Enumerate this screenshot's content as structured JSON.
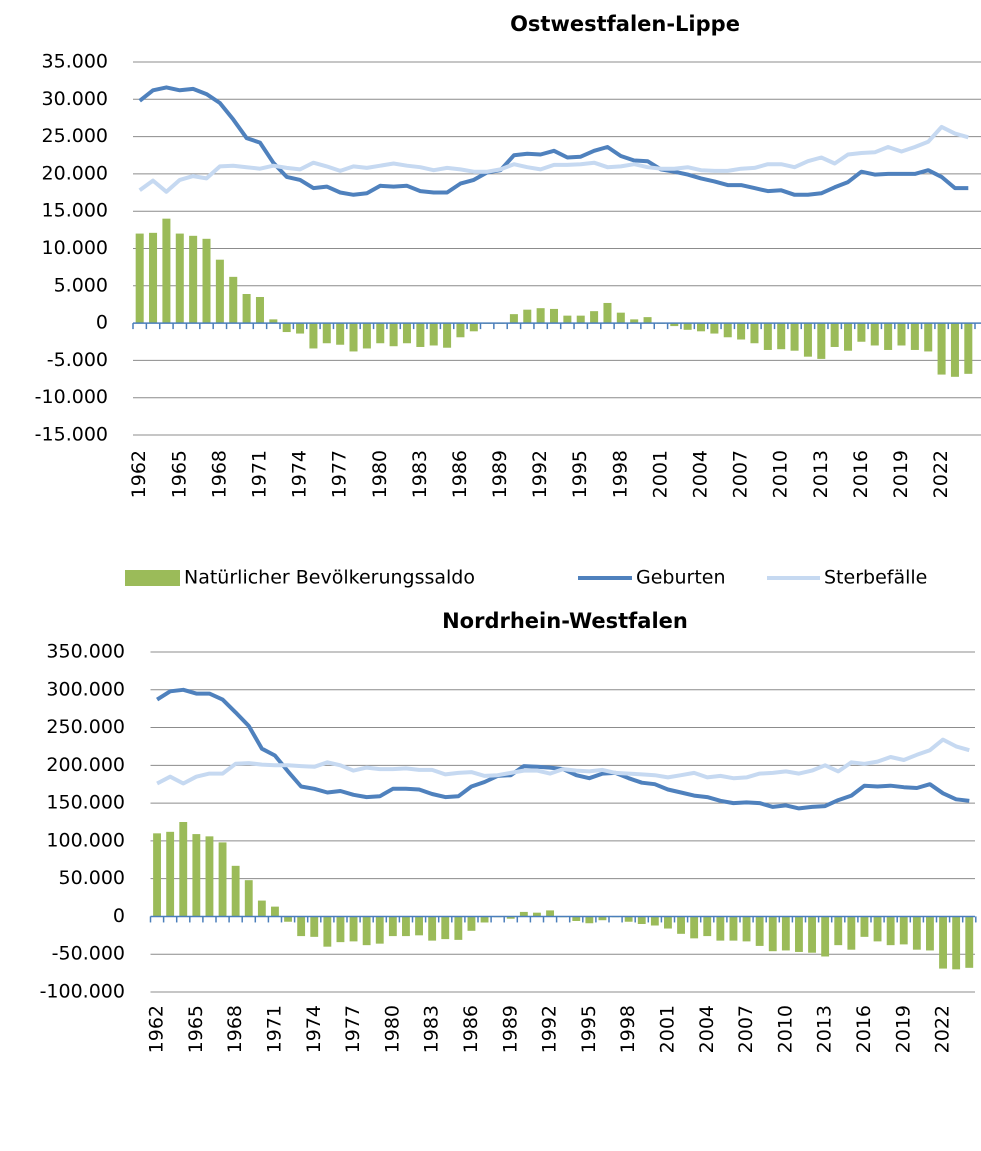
{
  "chart_data": [
    {
      "type": "bar",
      "title": "Ostwestfalen-Lippe",
      "legend": "bottom",
      "categories": [
        "1962",
        null,
        null,
        "1965",
        null,
        null,
        "1968",
        null,
        null,
        "1971",
        null,
        null,
        "1974",
        null,
        null,
        "1977",
        null,
        null,
        "1980",
        null,
        null,
        "1983",
        null,
        null,
        "1986",
        null,
        null,
        "1989",
        null,
        null,
        "1992",
        null,
        null,
        "1995",
        null,
        null,
        "1998",
        null,
        null,
        "2001",
        null,
        null,
        "2004",
        null,
        null,
        "2007",
        null,
        null,
        "2010",
        null,
        null,
        "2013",
        null,
        null,
        "2016",
        null,
        null,
        "2019",
        null,
        null,
        "2022",
        null,
        null
      ],
      "ylim": [
        -15000,
        35000
      ],
      "yticks": [
        {
          "value": -15000,
          "label": "-15.000"
        },
        {
          "value": -10000,
          "label": "-10.000"
        },
        {
          "value": -5000,
          "label": "-5.000"
        },
        0,
        {
          "value": 5000,
          "label": "5.000"
        },
        {
          "value": 10000,
          "label": "10.000"
        },
        {
          "value": 15000,
          "label": "15.000"
        },
        {
          "value": 20000,
          "label": "20.000"
        },
        {
          "value": 25000,
          "label": "25.000"
        },
        {
          "value": 30000,
          "label": "30.000"
        },
        {
          "value": 35000,
          "label": "35.000"
        }
      ],
      "grid": true,
      "series": [
        {
          "name": "Natürlicher Bevölkerungssaldo",
          "type": "bar",
          "color": "#9bbb59",
          "values": [
            12000,
            12100,
            14000,
            12000,
            11700,
            11300,
            8500,
            6200,
            3900,
            3500,
            500,
            -1200,
            -1400,
            -3400,
            -2700,
            -2900,
            -3800,
            -3400,
            -2700,
            -3100,
            -2700,
            -3200,
            -3000,
            -3300,
            -1900,
            -1100,
            -100,
            -100,
            1200,
            1800,
            2000,
            1900,
            1000,
            1000,
            1600,
            2700,
            1400,
            500,
            800,
            -100,
            -400,
            -900,
            -1100,
            -1400,
            -1900,
            -2200,
            -2700,
            -3600,
            -3500,
            -3700,
            -4500,
            -4800,
            -3200,
            -3700,
            -2500,
            -3000,
            -3600,
            -3000,
            -3600,
            -3800,
            -6900,
            -7200,
            -6800
          ]
        },
        {
          "name": "Geburten",
          "type": "line",
          "color": "#4f81bd",
          "values": [
            29800,
            31200,
            31600,
            31200,
            31400,
            30700,
            29500,
            27300,
            24800,
            24200,
            21500,
            19600,
            19200,
            18100,
            18300,
            17500,
            17200,
            17400,
            18400,
            18300,
            18400,
            17700,
            17500,
            17500,
            18700,
            19200,
            20200,
            20500,
            22500,
            22700,
            22600,
            23100,
            22200,
            22300,
            23100,
            23600,
            22400,
            21800,
            21700,
            20600,
            20300,
            19900,
            19400,
            19000,
            18500,
            18500,
            18100,
            17700,
            17800,
            17200,
            17200,
            17400,
            18200,
            18900,
            20300,
            19900,
            20000,
            20000,
            20000,
            20500,
            19600,
            18100,
            18100
          ]
        },
        {
          "name": "Sterbefälle",
          "type": "line",
          "color": "#c6d9f1",
          "values": [
            17800,
            19100,
            17600,
            19200,
            19700,
            19400,
            21000,
            21100,
            20900,
            20700,
            21100,
            20800,
            20600,
            21500,
            21000,
            20400,
            21000,
            20800,
            21100,
            21400,
            21100,
            20900,
            20500,
            20800,
            20600,
            20300,
            20300,
            20600,
            21300,
            20900,
            20600,
            21200,
            21200,
            21300,
            21500,
            20900,
            21000,
            21300,
            20900,
            20700,
            20700,
            20900,
            20500,
            20400,
            20400,
            20700,
            20800,
            21300,
            21300,
            20900,
            21700,
            22200,
            21400,
            22600,
            22800,
            22900,
            23600,
            23000,
            23600,
            24300,
            26300,
            25400,
            24900
          ]
        }
      ]
    },
    {
      "type": "bar",
      "title": "Nordrhein-Westfalen",
      "categories": [
        "1962",
        null,
        null,
        "1965",
        null,
        null,
        "1968",
        null,
        null,
        "1971",
        null,
        null,
        "1974",
        null,
        null,
        "1977",
        null,
        null,
        "1980",
        null,
        null,
        "1983",
        null,
        null,
        "1986",
        null,
        null,
        "1989",
        null,
        null,
        "1992",
        null,
        null,
        "1995",
        null,
        null,
        "1998",
        null,
        null,
        "2001",
        null,
        null,
        "2004",
        null,
        null,
        "2007",
        null,
        null,
        "2010",
        null,
        null,
        "2013",
        null,
        null,
        "2016",
        null,
        null,
        "2019",
        null,
        null,
        "2022",
        null,
        null
      ],
      "ylim": [
        -100000,
        350000
      ],
      "yticks": [
        {
          "value": -100000,
          "label": "-100.000"
        },
        {
          "value": -50000,
          "label": "-50.000"
        },
        0,
        {
          "value": 50000,
          "label": "50.000"
        },
        {
          "value": 100000,
          "label": "100.000"
        },
        {
          "value": 150000,
          "label": "150.000"
        },
        {
          "value": 200000,
          "label": "200.000"
        },
        {
          "value": 250000,
          "label": "250.000"
        },
        {
          "value": 300000,
          "label": "300.000"
        },
        {
          "value": 350000,
          "label": "350.000"
        }
      ],
      "grid": true,
      "series": [
        {
          "type": "bar",
          "color": "#9bbb59",
          "values": [
            110000,
            112000,
            125000,
            109000,
            106000,
            98000,
            67000,
            48000,
            21000,
            13000,
            -7000,
            -26000,
            -27000,
            -40000,
            -34000,
            -33000,
            -38000,
            -36000,
            -26000,
            -26000,
            -25000,
            -32000,
            -30000,
            -31000,
            -19000,
            -8000,
            -1000,
            -3000,
            6000,
            5000,
            8000,
            -1000,
            -6000,
            -9000,
            -5000,
            -1000,
            -7000,
            -10000,
            -12000,
            -16000,
            -23000,
            -29000,
            -26000,
            -32000,
            -32000,
            -33000,
            -39000,
            -46000,
            -45000,
            -47000,
            -48000,
            -53000,
            -38000,
            -44000,
            -27000,
            -33000,
            -38000,
            -37000,
            -44000,
            -45000,
            -69000,
            -70000,
            -68000
          ]
        },
        {
          "type": "line",
          "color": "#4f81bd",
          "values": [
            287000,
            298000,
            300000,
            295000,
            295000,
            287000,
            270000,
            252000,
            222000,
            213000,
            192000,
            172000,
            169000,
            164000,
            166000,
            161000,
            158000,
            159000,
            169000,
            169000,
            168000,
            162000,
            158000,
            159000,
            172000,
            178000,
            186000,
            187000,
            199000,
            198000,
            197000,
            195000,
            187000,
            183000,
            189000,
            190000,
            183000,
            177000,
            175000,
            168000,
            164000,
            160000,
            158000,
            153000,
            150000,
            151000,
            150000,
            145000,
            147000,
            143000,
            145000,
            146000,
            154000,
            160000,
            173000,
            172000,
            173000,
            171000,
            170000,
            175000,
            163000,
            155000,
            153000
          ]
        },
        {
          "type": "line",
          "color": "#c6d9f1",
          "values": [
            176000,
            185000,
            176000,
            185000,
            189000,
            189000,
            202000,
            203000,
            201000,
            200000,
            200000,
            199000,
            198000,
            204000,
            200000,
            193000,
            197000,
            195000,
            195000,
            196000,
            194000,
            194000,
            188000,
            190000,
            191000,
            186000,
            187000,
            190000,
            193000,
            193000,
            189000,
            195000,
            193000,
            192000,
            194000,
            190000,
            189000,
            188000,
            187000,
            184000,
            187000,
            190000,
            184000,
            186000,
            183000,
            184000,
            189000,
            190000,
            192000,
            189000,
            193000,
            200000,
            192000,
            204000,
            202000,
            205000,
            211000,
            207000,
            214000,
            220000,
            234000,
            225000,
            220000
          ]
        }
      ]
    }
  ]
}
